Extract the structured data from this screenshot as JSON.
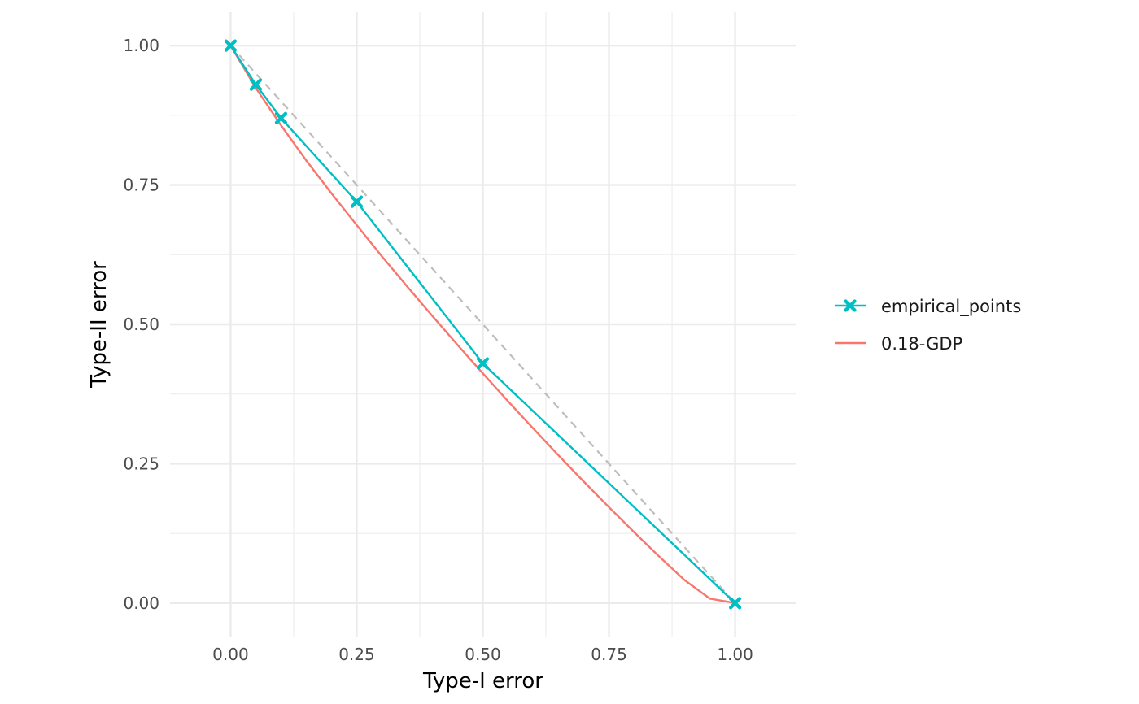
{
  "chart_data": {
    "type": "line",
    "title": "",
    "xlabel": "Type-I error",
    "ylabel": "Type-II error",
    "xlim": [
      -0.12,
      1.12
    ],
    "ylim": [
      -0.06,
      1.06
    ],
    "x_ticks": [
      0.0,
      0.25,
      0.5,
      0.75,
      1.0
    ],
    "x_tick_labels": [
      "0.00",
      "0.25",
      "0.50",
      "0.75",
      "1.00"
    ],
    "y_ticks": [
      0.0,
      0.25,
      0.5,
      0.75,
      1.0
    ],
    "y_tick_labels": [
      "0.00",
      "0.25",
      "0.50",
      "0.75",
      "1.00"
    ],
    "grid": true,
    "legend_position": "right",
    "reference_line": {
      "x": [
        0,
        1
      ],
      "y": [
        1,
        0
      ],
      "color": "#bdbdbd",
      "style": "dashed"
    },
    "series": [
      {
        "name": "empirical_points",
        "color": "#00bfc4",
        "marker": "x",
        "x": [
          0.0,
          0.05,
          0.1,
          0.25,
          0.5,
          1.0
        ],
        "y": [
          1.0,
          0.93,
          0.87,
          0.72,
          0.43,
          0.0
        ]
      },
      {
        "name": "0.18-GDP",
        "color": "#f8766d",
        "marker": "none",
        "x": [
          0.0,
          0.05,
          0.1,
          0.15,
          0.2,
          0.25,
          0.3,
          0.35,
          0.4,
          0.45,
          0.5,
          0.55,
          0.6,
          0.65,
          0.7,
          0.75,
          0.8,
          0.85,
          0.9,
          0.95,
          1.0
        ],
        "y": [
          1.0,
          0.924,
          0.857,
          0.794,
          0.735,
          0.678,
          0.622,
          0.568,
          0.515,
          0.463,
          0.412,
          0.362,
          0.313,
          0.265,
          0.218,
          0.172,
          0.127,
          0.083,
          0.041,
          0.008,
          0.0
        ]
      }
    ]
  }
}
